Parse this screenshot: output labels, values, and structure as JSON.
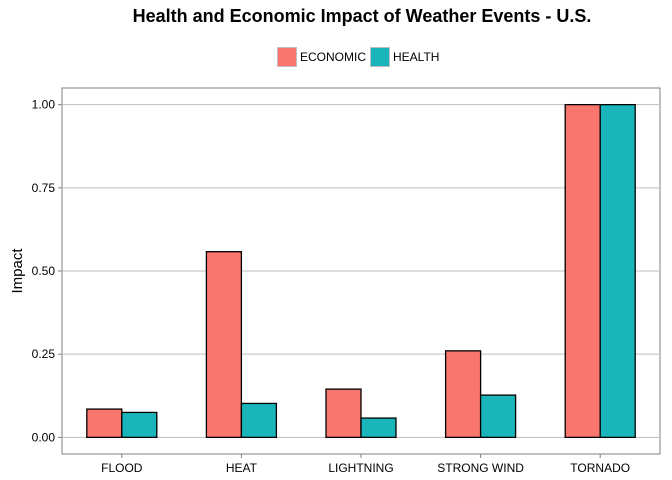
{
  "chart_data": {
    "type": "bar",
    "title": "Health and Economic Impact of Weather Events - U.S.",
    "ylabel": "Impact",
    "xlabel": "",
    "categories": [
      "FLOOD",
      "HEAT",
      "LIGHTNING",
      "STRONG WIND",
      "TORNADO"
    ],
    "series": [
      {
        "name": "ECONOMIC",
        "color": "#F8766D",
        "values": [
          0.085,
          0.558,
          0.145,
          0.26,
          1.0
        ]
      },
      {
        "name": "HEALTH",
        "color": "#19B5BA",
        "values": [
          0.075,
          0.102,
          0.058,
          0.127,
          1.0
        ]
      }
    ],
    "ylim": [
      -0.05,
      1.05
    ],
    "yticks": [
      "0.00",
      "0.25",
      "0.50",
      "0.75",
      "1.00"
    ],
    "grid": true,
    "legend_position": "top"
  }
}
